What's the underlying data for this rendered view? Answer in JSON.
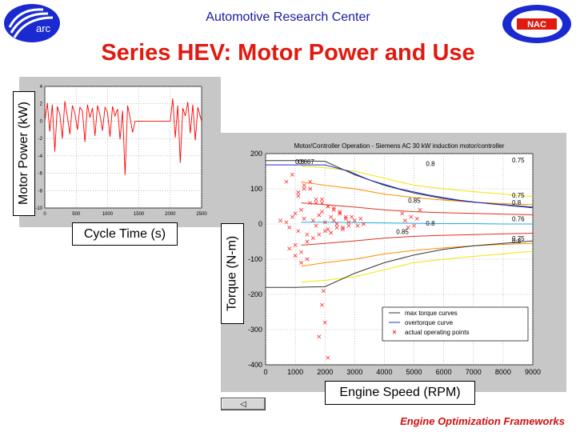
{
  "header": {
    "title": "Automotive Research Center"
  },
  "slide": {
    "title": "Series HEV: Motor Power and Use"
  },
  "footer": {
    "text": "Engine Optimization Frameworks"
  },
  "logos": {
    "left_text": "arc",
    "right_text": "NAC"
  },
  "nav": {
    "back_glyph": "◁"
  },
  "colors": {
    "title_red": "#e01a10",
    "header_blue": "#1a1aa0",
    "series_red": "#ff0000",
    "max_torque": "#333333",
    "overtorque": "#1f2fd0"
  },
  "chart_data": [
    {
      "type": "line",
      "title": "",
      "xlabel": "Cycle Time (s)",
      "ylabel": "Motor Power (kW)",
      "xlim": [
        0,
        2500
      ],
      "ylim": [
        -10,
        4
      ],
      "xticks": [
        "0",
        "500",
        "1000",
        "1500",
        "2000",
        "2500"
      ],
      "yticks": [
        "4",
        "2",
        "0",
        "-2",
        "-4",
        "-6",
        "-8",
        "-10"
      ],
      "grid": true,
      "series": [
        {
          "x": [
            0,
            40,
            80,
            120,
            160,
            200,
            240,
            280,
            320,
            360,
            400,
            440,
            480,
            520,
            560,
            600,
            640,
            680,
            720,
            760,
            800,
            840,
            880,
            920,
            960,
            1000,
            1040,
            1080,
            1120,
            1160,
            1200,
            1240,
            1280,
            1320,
            1360,
            1400,
            1440,
            1600,
            1800,
            2000,
            2040,
            2080,
            2120,
            2160,
            2200,
            2240,
            2280,
            2320,
            2360,
            2400,
            2440,
            2480,
            2500
          ],
          "y": [
            0,
            2.1,
            -1.2,
            1.9,
            -3.5,
            1.7,
            0.8,
            -2.0,
            2.3,
            0.5,
            -1.5,
            1.8,
            0.9,
            -1.0,
            1.6,
            1.2,
            -2.4,
            1.9,
            0.4,
            1.5,
            -1.7,
            1.8,
            0.7,
            -1.1,
            1.6,
            1.0,
            -1.8,
            1.7,
            0.6,
            1.4,
            -2.1,
            1.2,
            -6.2,
            1.8,
            0.4,
            -1.3,
            0,
            0,
            0,
            0,
            2.6,
            -1.9,
            1.8,
            -4.8,
            1.5,
            0.6,
            2.2,
            -1.4,
            1.9,
            -2.2,
            1.6,
            0.5,
            0
          ]
        }
      ]
    },
    {
      "type": "scatter",
      "title": "Motor/Controller Operation - Siemens AC 30 kW induction motor/controller",
      "xlabel": "Engine Speed (RPM)",
      "ylabel": "Torque (N-m)",
      "xlim": [
        0,
        9000
      ],
      "ylim": [
        -400,
        200
      ],
      "xticks": [
        "0",
        "1000",
        "2000",
        "3000",
        "4000",
        "5000",
        "6000",
        "7000",
        "8000",
        "9000"
      ],
      "yticks": [
        "200",
        "100",
        "0",
        "-100",
        "-200",
        "-300",
        "-400"
      ],
      "grid": true,
      "legend_position": "bottom-right",
      "legend": [
        "max torque curves",
        "overtorque curve",
        "actual operating points"
      ],
      "series": [
        {
          "name": "max torque curves",
          "x": [
            0,
            1000,
            2000,
            3000,
            4000,
            5000,
            6000,
            7000,
            8000,
            9000
          ],
          "y": [
            180,
            180,
            178,
            140,
            110,
            88,
            72,
            62,
            55,
            48
          ]
        },
        {
          "name": "max torque curves",
          "x": [
            0,
            1000,
            2000,
            3000,
            4000,
            5000,
            6000,
            7000,
            8000,
            9000
          ],
          "y": [
            -180,
            -180,
            -178,
            -140,
            -110,
            -88,
            -72,
            -62,
            -55,
            -48
          ]
        },
        {
          "name": "overtorque curve",
          "x": [
            0,
            2000,
            2800,
            3500,
            4500,
            5500,
            6500,
            7500,
            8500,
            9000
          ],
          "y": [
            168,
            168,
            150,
            125,
            100,
            82,
            68,
            58,
            50,
            46
          ]
        },
        {
          "name": "actual operating points",
          "x": [
            500,
            700,
            800,
            900,
            1000,
            1100,
            1200,
            1300,
            1400,
            1500,
            1600,
            1700,
            1800,
            1900,
            2000,
            2100,
            2200,
            2300,
            2400,
            2500,
            2600,
            2700,
            2800,
            2900,
            3000,
            3100,
            3200,
            3300,
            1000,
            1200,
            1400,
            1600,
            1800,
            2000,
            2200,
            2400,
            2600,
            2800,
            1100,
            1300,
            1500,
            1700,
            1900,
            2100,
            2300,
            2500,
            700,
            900,
            1100,
            1300,
            1500,
            1700,
            1900,
            2100,
            2300,
            2500,
            2700,
            4600,
            4700,
            4800,
            4900,
            5000,
            5100,
            5200,
            1900,
            2000,
            1800,
            2100,
            1950,
            800,
            1000,
            1200,
            1400
          ],
          "y": [
            10,
            5,
            -10,
            20,
            30,
            -20,
            40,
            15,
            -30,
            60,
            10,
            -5,
            25,
            35,
            5,
            -15,
            20,
            10,
            0,
            30,
            -10,
            15,
            5,
            20,
            10,
            -5,
            15,
            0,
            -60,
            -80,
            -50,
            -40,
            -30,
            -20,
            -25,
            -10,
            -15,
            -5,
            80,
            100,
            120,
            60,
            70,
            50,
            40,
            30,
            120,
            140,
            90,
            110,
            100,
            70,
            60,
            50,
            45,
            35,
            20,
            30,
            10,
            -10,
            20,
            -5,
            15,
            40,
            -230,
            -280,
            -320,
            -380,
            -190,
            -70,
            -90,
            -110,
            -100
          ]
        }
      ],
      "efficiency_labels": [
        {
          "text": "0.75",
          "x": 8300,
          "y": 175
        },
        {
          "text": "0.8",
          "x": 5400,
          "y": 165
        },
        {
          "text": "0.85",
          "x": 4800,
          "y": 60
        },
        {
          "text": "0.8",
          "x": 5400,
          "y": -5
        },
        {
          "text": "0.85",
          "x": 4400,
          "y": -28
        },
        {
          "text": "0.75",
          "x": 8300,
          "y": 75
        },
        {
          "text": "0.8",
          "x": 8300,
          "y": 55
        },
        {
          "text": "0.76",
          "x": 8300,
          "y": 8
        },
        {
          "text": "0.75",
          "x": 8300,
          "y": -48
        },
        {
          "text": "0.8",
          "x": 8300,
          "y": -55
        },
        {
          "text": "0.667",
          "x": 1100,
          "y": 170
        },
        {
          "text": "0.8",
          "x": 1000,
          "y": 170
        }
      ]
    }
  ]
}
